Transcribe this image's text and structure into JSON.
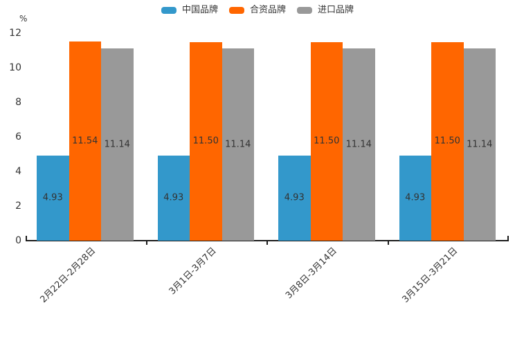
{
  "chart_data": {
    "type": "bar",
    "title": "",
    "ylabel": "%",
    "ylim": [
      0,
      12
    ],
    "yticks": [
      0,
      2,
      4,
      6,
      8,
      10,
      12
    ],
    "grid": false,
    "legend_position": "top-center",
    "categories": [
      "2月22日-2月28日",
      "3月1日-3月7日",
      "3月8日-3月14日",
      "3月15日-3月21日"
    ],
    "series": [
      {
        "name": "中国品牌",
        "color": "#3398CB",
        "values": [
          4.93,
          4.93,
          4.93,
          4.93
        ],
        "labels": [
          "4.93",
          "4.93",
          "4.93",
          "4.93"
        ]
      },
      {
        "name": "合资品牌",
        "color": "#FF6600",
        "values": [
          11.54,
          11.5,
          11.5,
          11.5
        ],
        "labels": [
          "11.54",
          "11.50",
          "11.50",
          "11.50"
        ]
      },
      {
        "name": "进口品牌",
        "color": "#999999",
        "values": [
          11.14,
          11.14,
          11.14,
          11.14
        ],
        "labels": [
          "11.14",
          "11.14",
          "11.14",
          "11.14"
        ]
      }
    ],
    "colors": {
      "axis_line": "#1a1a1a",
      "axis_text": "#333333",
      "value_label_text": "#333333"
    }
  }
}
